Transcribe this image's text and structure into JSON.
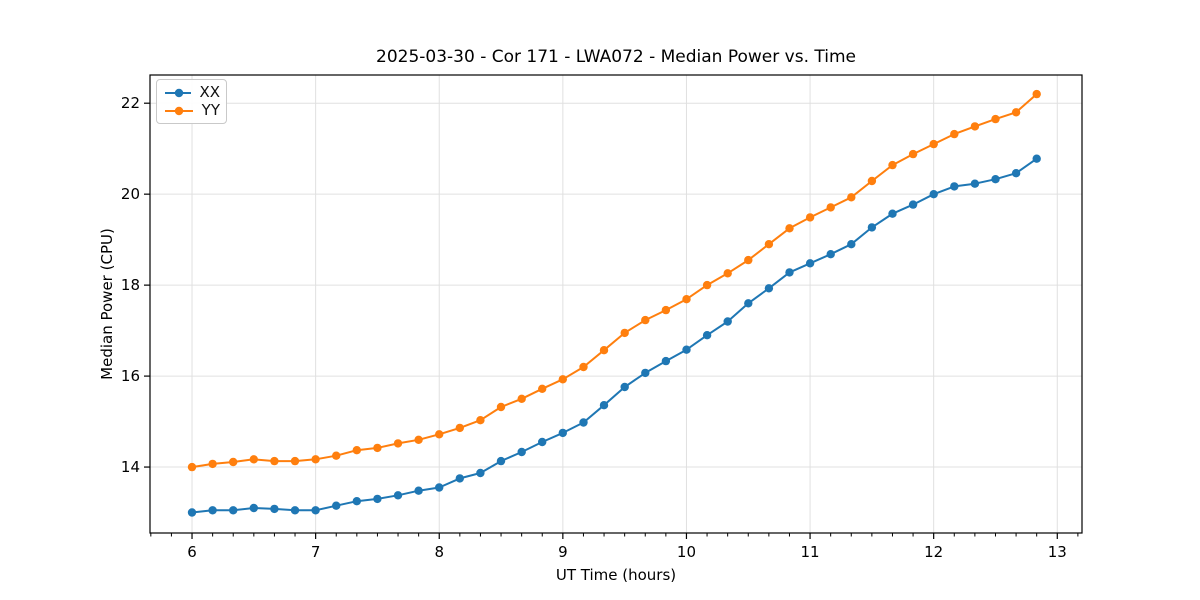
{
  "chart_data": {
    "type": "line",
    "title": "2025-03-30 - Cor 171 - LWA072 - Median Power vs. Time",
    "xlabel": "UT Time (hours)",
    "ylabel": "Median Power (CPU)",
    "xlim": [
      5.66,
      13.2
    ],
    "ylim": [
      12.55,
      22.62
    ],
    "x_major_ticks": [
      6,
      7,
      8,
      9,
      10,
      11,
      12,
      13
    ],
    "x_minor_ticks_per_major": 6,
    "y_major_ticks": [
      14,
      16,
      18,
      20,
      22
    ],
    "grid": true,
    "grid_color": "#e0e0e0",
    "legend": {
      "position": "upper left",
      "entries": [
        "XX",
        "YY"
      ]
    },
    "x": [
      6.0,
      6.1667,
      6.3333,
      6.5,
      6.6667,
      6.8333,
      7.0,
      7.1667,
      7.3333,
      7.5,
      7.6667,
      7.8333,
      8.0,
      8.1667,
      8.3333,
      8.5,
      8.6667,
      8.8333,
      9.0,
      9.1667,
      9.3333,
      9.5,
      9.6667,
      9.8333,
      10.0,
      10.1667,
      10.3333,
      10.5,
      10.6667,
      10.8333,
      11.0,
      11.1667,
      11.3333,
      11.5,
      11.6667,
      11.8333,
      12.0,
      12.1667,
      12.3333,
      12.5,
      12.6667,
      12.8333
    ],
    "series": [
      {
        "name": "XX",
        "color": "#1f77b4",
        "values": [
          13.0,
          13.05,
          13.05,
          13.1,
          13.08,
          13.05,
          13.05,
          13.15,
          13.25,
          13.3,
          13.38,
          13.48,
          13.55,
          13.75,
          13.87,
          14.13,
          14.33,
          14.55,
          14.75,
          14.98,
          15.36,
          15.76,
          16.07,
          16.33,
          16.58,
          16.9,
          17.2,
          17.6,
          17.93,
          18.28,
          18.48,
          18.68,
          18.9,
          19.27,
          19.57,
          19.77,
          20.0,
          20.17,
          20.23,
          20.33,
          20.46,
          20.78
        ]
      },
      {
        "name": "YY",
        "color": "#ff7f0e",
        "values": [
          14.0,
          14.07,
          14.11,
          14.17,
          14.13,
          14.13,
          14.17,
          14.25,
          14.37,
          14.42,
          14.52,
          14.6,
          14.72,
          14.86,
          15.03,
          15.32,
          15.5,
          15.72,
          15.93,
          16.2,
          16.57,
          16.95,
          17.23,
          17.45,
          17.69,
          18.0,
          18.26,
          18.55,
          18.9,
          19.25,
          19.49,
          19.71,
          19.93,
          20.29,
          20.64,
          20.88,
          21.1,
          21.32,
          21.49,
          21.65,
          21.8,
          22.2
        ]
      }
    ]
  }
}
